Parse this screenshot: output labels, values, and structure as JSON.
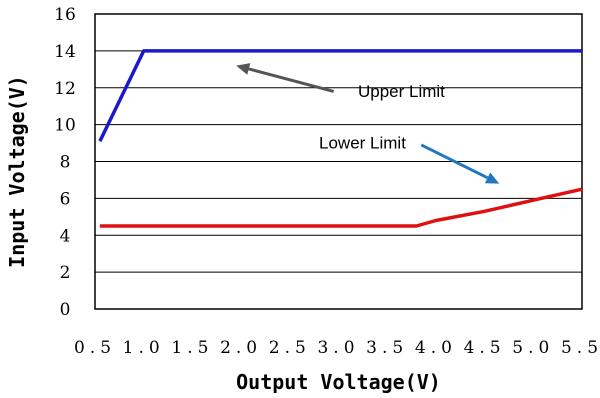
{
  "chart_data": {
    "type": "line",
    "xlabel": "Output Voltage(V)",
    "ylabel": "Input Voltage(V)",
    "xlim": [
      0.5,
      5.5
    ],
    "ylim": [
      0,
      16
    ],
    "xticks": [
      "0.5",
      "1.0",
      "1.5",
      "2.0",
      "2.5",
      "3.0",
      "3.5",
      "4.0",
      "4.5",
      "5.0",
      "5.5"
    ],
    "yticks": [
      "0",
      "2",
      "4",
      "6",
      "8",
      "10",
      "12",
      "14",
      "16"
    ],
    "grid": "horizontal",
    "series": [
      {
        "name": "Upper Limit",
        "color": "#1a1acc",
        "points": [
          [
            0.55,
            9.1
          ],
          [
            1.0,
            14.0
          ],
          [
            5.5,
            14.0
          ]
        ]
      },
      {
        "name": "Lower Limit",
        "color": "#e01010",
        "points": [
          [
            0.55,
            4.5
          ],
          [
            3.8,
            4.5
          ],
          [
            4.0,
            4.8
          ],
          [
            4.5,
            5.3
          ],
          [
            5.0,
            5.9
          ],
          [
            5.5,
            6.5
          ]
        ]
      }
    ],
    "annotations": [
      {
        "text": "Upper Limit",
        "arrow_color": "#555555",
        "text_at": [
          3.2,
          11.5
        ],
        "arrow_from": [
          2.95,
          11.8
        ],
        "arrow_to": [
          1.95,
          13.2
        ]
      },
      {
        "text": "Lower Limit",
        "arrow_color": "#1f77c0",
        "text_at": [
          2.8,
          8.7
        ],
        "arrow_from": [
          3.85,
          8.9
        ],
        "arrow_to": [
          4.65,
          6.8
        ]
      }
    ]
  }
}
